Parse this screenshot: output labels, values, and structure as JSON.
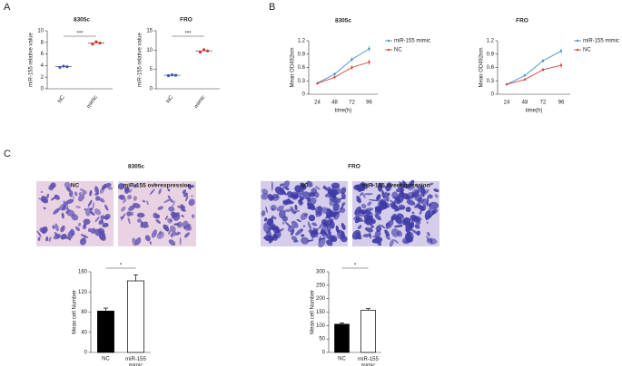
{
  "panel_labels": [
    "A",
    "B",
    "C"
  ],
  "images": [
    {
      "title": "8305c",
      "labels": [
        "NC",
        "miR-155 overexpression"
      ]
    },
    {
      "title": "FRO",
      "labels": [
        "NC",
        "miR-155 overexpression"
      ]
    }
  ],
  "chart_data": [
    {
      "type": "dot",
      "title": "8305c",
      "y_label": "miR-155 relative value",
      "categories": [
        "NC",
        "mimic"
      ],
      "values": [
        [
          3.7,
          3.9,
          3.8
        ],
        [
          7.7,
          8.1,
          7.9
        ]
      ],
      "means": [
        3.8,
        7.9
      ],
      "colors": [
        "#3a4fc4",
        "#d9342b"
      ],
      "ylim": [
        0,
        10
      ],
      "yticks": [
        0,
        2,
        4,
        6,
        8,
        10
      ],
      "annotation": "***"
    },
    {
      "type": "dot",
      "title": "FRO",
      "y_label": "miR-155 relative value",
      "categories": [
        "NC",
        "mimic"
      ],
      "values": [
        [
          3.4,
          3.6,
          3.5
        ],
        [
          9.5,
          10.1,
          9.8
        ]
      ],
      "means": [
        3.5,
        9.8
      ],
      "colors": [
        "#3a4fc4",
        "#d9342b"
      ],
      "ylim": [
        0,
        15
      ],
      "yticks": [
        0,
        5,
        10,
        15
      ],
      "annotation": "***"
    },
    {
      "type": "line",
      "title": "8305c",
      "x_label": "time(h)",
      "y_label": "Mean OD492nm",
      "x": [
        24,
        48,
        72,
        96
      ],
      "xlim": [
        12,
        108
      ],
      "xticks": [
        24,
        48,
        72,
        96
      ],
      "ylim": [
        0,
        1.2
      ],
      "yticks": [
        0,
        0.3,
        0.6,
        0.9,
        1.2
      ],
      "legend": "right",
      "series": [
        {
          "name": "miR-155 mimic",
          "color": "#4a90c8",
          "values": [
            0.25,
            0.45,
            0.78,
            1.02
          ],
          "errors": [
            0.02,
            0.04,
            0.05,
            0.06
          ]
        },
        {
          "name": "NC",
          "color": "#d8433c",
          "values": [
            0.24,
            0.38,
            0.6,
            0.72
          ],
          "errors": [
            0.02,
            0.03,
            0.05,
            0.06
          ]
        }
      ]
    },
    {
      "type": "line",
      "title": "FRO",
      "x_label": "time(h)",
      "y_label": "Mean OD492nm",
      "x": [
        24,
        48,
        72,
        96
      ],
      "xlim": [
        12,
        108
      ],
      "xticks": [
        24,
        48,
        72,
        96
      ],
      "ylim": [
        0,
        1.2
      ],
      "yticks": [
        0,
        0.3,
        0.6,
        0.9,
        1.2
      ],
      "legend": "right",
      "series": [
        {
          "name": "miR-155 mimic",
          "color": "#4a90c8",
          "values": [
            0.22,
            0.42,
            0.75,
            0.97
          ],
          "errors": [
            0.02,
            0.03,
            0.04,
            0.05
          ]
        },
        {
          "name": "NC",
          "color": "#d8433c",
          "values": [
            0.22,
            0.33,
            0.55,
            0.65
          ],
          "errors": [
            0.02,
            0.03,
            0.04,
            0.06
          ]
        }
      ]
    },
    {
      "type": "bar",
      "y_label": "Mean cell Number",
      "categories": [
        "NC",
        "miR-155 mimic"
      ],
      "values": [
        82,
        142
      ],
      "errors": [
        6,
        12
      ],
      "colors": [
        "#000000",
        "#ffffff"
      ],
      "ylim": [
        0,
        160
      ],
      "yticks": [
        0,
        40,
        80,
        120,
        160
      ],
      "annotation": "*"
    },
    {
      "type": "bar",
      "y_label": "Mean cell Number",
      "categories": [
        "NC",
        "miR-155 mimic"
      ],
      "values": [
        105,
        157
      ],
      "errors": [
        5,
        6
      ],
      "colors": [
        "#000000",
        "#ffffff"
      ],
      "ylim": [
        0,
        300
      ],
      "yticks": [
        0,
        50,
        100,
        150,
        200,
        250,
        300
      ],
      "annotation": "*"
    }
  ]
}
